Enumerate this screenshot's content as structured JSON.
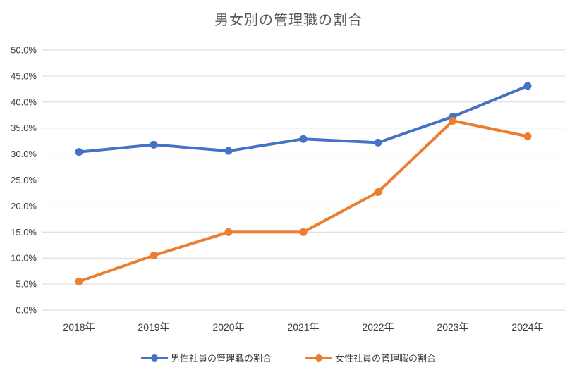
{
  "title": "男女別の管理職の割合",
  "chart_data": {
    "type": "line",
    "title": "男女別の管理職の割合",
    "xlabel": "",
    "ylabel": "",
    "categories": [
      "2018年",
      "2019年",
      "2020年",
      "2021年",
      "2022年",
      "2023年",
      "2024年"
    ],
    "series": [
      {
        "name": "男性社員の管理職の割合",
        "color": "#4472C4",
        "values": [
          30.4,
          31.8,
          30.6,
          32.9,
          32.2,
          37.2,
          43.1
        ]
      },
      {
        "name": "女性社員の管理職の割合",
        "color": "#ED7D31",
        "values": [
          5.5,
          10.5,
          15.0,
          15.0,
          22.7,
          36.4,
          33.4
        ]
      }
    ],
    "ylim": [
      0,
      50
    ],
    "y_tick_step": 5,
    "y_tick_labels": [
      "0.0%",
      "5.0%",
      "10.0%",
      "15.0%",
      "20.0%",
      "25.0%",
      "30.0%",
      "35.0%",
      "40.0%",
      "45.0%",
      "50.0%"
    ],
    "grid": "horizontal",
    "gridline_color": "#D9D9D9",
    "legend_position": "bottom",
    "marker": "circle"
  }
}
